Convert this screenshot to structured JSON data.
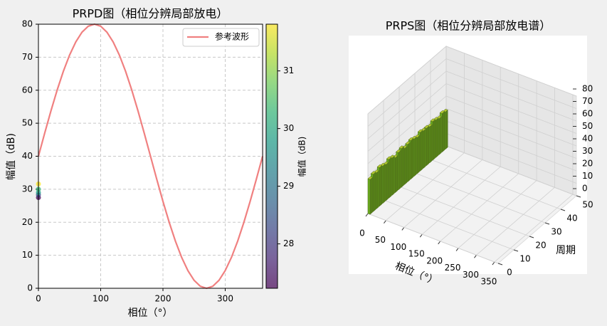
{
  "chart_data": [
    {
      "type": "scatter",
      "title": "PRPD图（相位分辨局部放电）",
      "x_label": "相位（°）",
      "y_label": "幅值（dB)",
      "xlim": [
        0,
        360
      ],
      "ylim": [
        0,
        80
      ],
      "xticks": [
        0,
        100,
        200,
        300
      ],
      "yticks": [
        0,
        10,
        20,
        30,
        40,
        50,
        60,
        70,
        80
      ],
      "grid": true,
      "legend": "upper right",
      "points": {
        "x": [
          0,
          0,
          0,
          0,
          0
        ],
        "y": [
          27.5,
          28.3,
          29.0,
          30.0,
          31.6
        ],
        "c": [
          27.4,
          28.5,
          29.6,
          30.3,
          31.7
        ]
      },
      "colorbar": {
        "label": "幅值（dB)",
        "lim": [
          27.23,
          31.81
        ],
        "ticks": [
          28,
          29,
          30,
          31
        ],
        "colormap": "viridis"
      },
      "series": [
        {
          "name": "参考波形",
          "color": "#f08080",
          "x": [
            0,
            10,
            20,
            30,
            40,
            50,
            60,
            70,
            80,
            90,
            100,
            110,
            120,
            130,
            140,
            150,
            160,
            170,
            180,
            190,
            200,
            210,
            220,
            230,
            240,
            250,
            260,
            270,
            280,
            290,
            300,
            310,
            320,
            330,
            340,
            350,
            360
          ],
          "values": [
            40,
            46.95,
            53.68,
            60,
            65.71,
            70.64,
            74.64,
            77.59,
            79.39,
            80,
            79.39,
            77.59,
            74.64,
            70.64,
            65.71,
            60,
            53.68,
            46.95,
            40,
            33.05,
            26.32,
            20,
            14.29,
            9.36,
            5.36,
            2.41,
            0.61,
            0,
            0.61,
            2.41,
            5.36,
            9.36,
            14.29,
            20,
            26.32,
            33.05,
            40
          ]
        }
      ]
    },
    {
      "type": "bar3d",
      "title": "PRPS图（相位分辨局部放电谱）",
      "x_label": "相位（°）",
      "y_label": "周期",
      "xlim": [
        0,
        360
      ],
      "ylim": [
        0,
        50
      ],
      "zlim": [
        0,
        80
      ],
      "xticks": [
        0,
        50,
        100,
        150,
        200,
        250,
        300,
        350
      ],
      "yticks": [
        0,
        10,
        20,
        30,
        40,
        50
      ],
      "zticks": [
        0,
        10,
        20,
        30,
        40,
        50,
        60,
        70,
        80
      ],
      "color": "#6bab1f",
      "x": [
        0,
        0,
        0,
        0,
        0,
        0,
        0,
        0,
        0,
        0,
        0,
        0,
        0,
        0,
        0,
        0,
        0,
        0,
        0,
        0,
        0,
        0,
        0,
        0,
        0
      ],
      "y": [
        0,
        2,
        4,
        6,
        8,
        10,
        12,
        14,
        16,
        18,
        20,
        22,
        24,
        26,
        28,
        30,
        32,
        34,
        36,
        38,
        40,
        42,
        44,
        46,
        48
      ],
      "values": [
        28,
        30,
        29,
        31,
        30,
        29,
        31,
        30,
        28,
        30,
        31,
        29,
        30,
        31,
        30,
        29,
        31,
        30,
        30,
        29,
        31,
        30,
        29,
        31,
        30
      ]
    }
  ]
}
